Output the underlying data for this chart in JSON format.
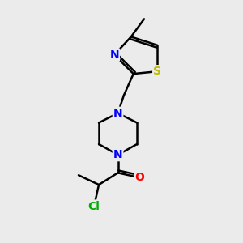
{
  "background_color": "#ebebeb",
  "line_color": "#000000",
  "atom_colors": {
    "N": "#0000ff",
    "O": "#ff0000",
    "S": "#bbbb00",
    "Cl": "#00aa00",
    "C": "#000000"
  },
  "bond_lw": 1.8,
  "font_size": 10,
  "fig_w": 3.0,
  "fig_h": 3.0,
  "dpi": 100
}
